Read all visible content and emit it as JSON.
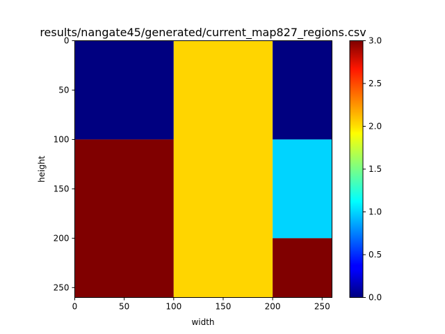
{
  "chart_data": {
    "type": "heatmap",
    "title": "results/nangate45/generated/current_map827_regions.csv",
    "xlabel": "width",
    "ylabel": "height",
    "xlim": [
      0,
      260
    ],
    "ylim": [
      260,
      0
    ],
    "x_ticks": [
      0,
      50,
      100,
      150,
      200,
      250
    ],
    "y_ticks": [
      0,
      50,
      100,
      150,
      200,
      250
    ],
    "colormap": "jet",
    "color_range": [
      0.0,
      3.0
    ],
    "colorbar_ticks": [
      "0.0",
      "0.5",
      "1.0",
      "1.5",
      "2.0",
      "2.5",
      "3.0"
    ],
    "regions": [
      {
        "x0": 0,
        "x1": 100,
        "y0": 0,
        "y1": 100,
        "value": 0.0
      },
      {
        "x0": 0,
        "x1": 100,
        "y0": 100,
        "y1": 260,
        "value": 3.0
      },
      {
        "x0": 100,
        "x1": 200,
        "y0": 0,
        "y1": 260,
        "value": 2.0
      },
      {
        "x0": 200,
        "x1": 260,
        "y0": 0,
        "y1": 100,
        "value": 0.0
      },
      {
        "x0": 200,
        "x1": 260,
        "y0": 100,
        "y1": 200,
        "value": 1.0
      },
      {
        "x0": 200,
        "x1": 260,
        "y0": 200,
        "y1": 260,
        "value": 3.0
      }
    ]
  }
}
